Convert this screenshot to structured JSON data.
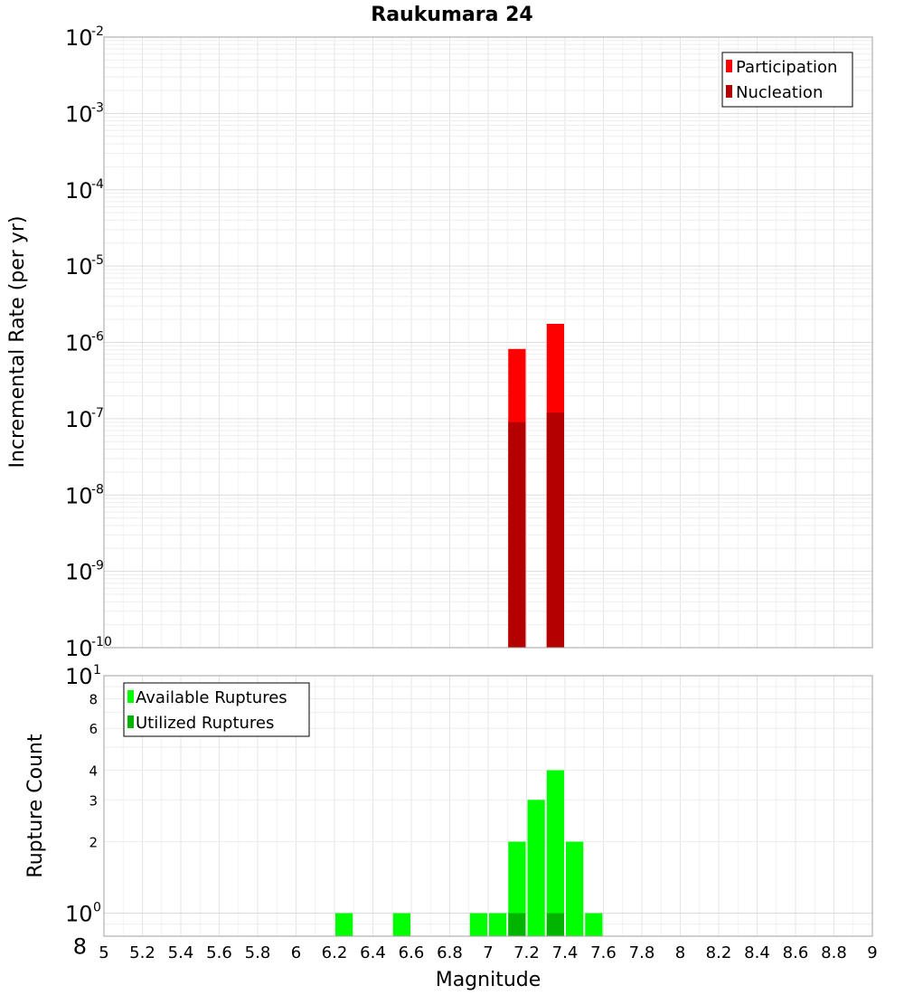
{
  "chart_data": [
    {
      "type": "bar",
      "title": "Raukumara 24",
      "xlabel": "",
      "ylabel": "Incremental Rate (per yr)",
      "yscale": "log",
      "ylim": [
        1e-10,
        0.01
      ],
      "xlim": [
        5,
        9
      ],
      "bin_width": 0.1,
      "legend_position": "top-right",
      "grid": true,
      "y_ticks": [
        {
          "base": "10",
          "exp": "-10"
        },
        {
          "base": "10",
          "exp": "-9"
        },
        {
          "base": "10",
          "exp": "-8"
        },
        {
          "base": "10",
          "exp": "-7"
        },
        {
          "base": "10",
          "exp": "-6"
        },
        {
          "base": "10",
          "exp": "-5"
        },
        {
          "base": "10",
          "exp": "-4"
        },
        {
          "base": "10",
          "exp": "-3"
        },
        {
          "base": "10",
          "exp": "-2"
        }
      ],
      "series": [
        {
          "name": "Participation",
          "color": "#ff0000",
          "x": [
            7.15,
            7.35
          ],
          "values": [
            8.2e-07,
            1.75e-06
          ]
        },
        {
          "name": "Nucleation",
          "color": "#b40000",
          "x": [
            7.15,
            7.35
          ],
          "values": [
            9e-08,
            1.2e-07
          ]
        }
      ]
    },
    {
      "type": "bar",
      "title": "",
      "xlabel": "Magnitude",
      "ylabel": "Rupture Count",
      "yscale": "log",
      "ylim": [
        0.8,
        10
      ],
      "xlim": [
        5,
        9
      ],
      "bin_width": 0.1,
      "legend_position": "top-left",
      "grid": true,
      "y_major_ticks": [
        {
          "base": "10",
          "exp": "0"
        },
        {
          "base": "10",
          "exp": "1"
        }
      ],
      "y_minor_ticks": [
        "8",
        "2",
        "3",
        "4",
        "6",
        "8"
      ],
      "x_ticks": [
        "5",
        "5.2",
        "5.4",
        "5.6",
        "5.8",
        "6",
        "6.2",
        "6.4",
        "6.6",
        "6.8",
        "7",
        "7.2",
        "7.4",
        "7.6",
        "7.8",
        "8",
        "8.2",
        "8.4",
        "8.6",
        "8.8",
        "9"
      ],
      "series": [
        {
          "name": "Available Ruptures",
          "color": "#00ff00",
          "x": [
            6.25,
            6.55,
            6.95,
            7.05,
            7.15,
            7.25,
            7.35,
            7.45,
            7.55
          ],
          "values": [
            1,
            1,
            1,
            1,
            2,
            3,
            4,
            2,
            1
          ]
        },
        {
          "name": "Utilized Ruptures",
          "color": "#00b400",
          "x": [
            7.15,
            7.35
          ],
          "values": [
            1,
            1
          ]
        }
      ]
    }
  ]
}
